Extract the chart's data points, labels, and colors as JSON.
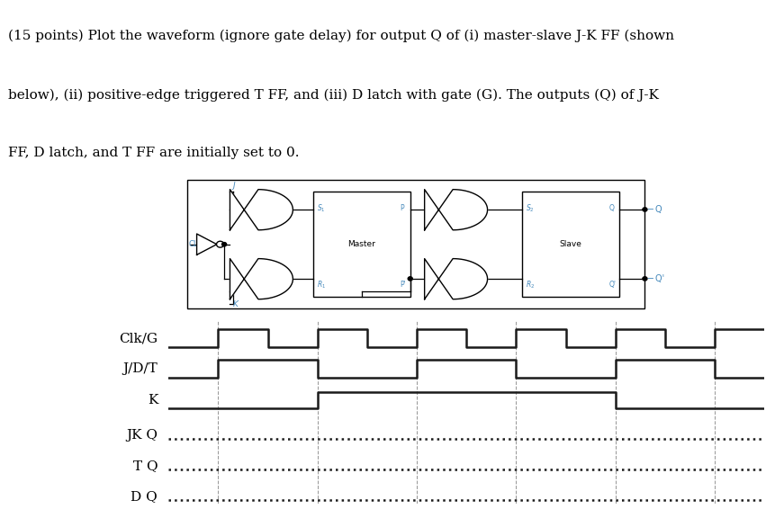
{
  "text_lines": [
    "(15 points) Plot the waveform (ignore gate delay) for output Q of (i) master-slave J-K FF (shown",
    "below), (ii) positive-edge triggered T FF, and (iii) D latch with gate (G). The outputs (Q) of J-K",
    "FF, D latch, and T FF are initially set to 0."
  ],
  "signals": {
    "Clk/G": {
      "times": [
        0,
        1,
        1,
        2,
        2,
        3,
        3,
        4,
        4,
        5,
        5,
        6,
        6,
        7,
        7,
        8,
        8,
        9,
        9,
        10,
        10,
        11,
        11,
        12
      ],
      "values": [
        0,
        0,
        1,
        1,
        0,
        0,
        1,
        1,
        0,
        0,
        1,
        1,
        0,
        0,
        1,
        1,
        0,
        0,
        1,
        1,
        0,
        0,
        1,
        1
      ]
    },
    "J/D/T": {
      "times": [
        0,
        1,
        1,
        3,
        3,
        5,
        5,
        7,
        7,
        9,
        9,
        11,
        11,
        12
      ],
      "values": [
        0,
        0,
        1,
        1,
        0,
        0,
        1,
        1,
        0,
        0,
        1,
        1,
        0,
        0
      ]
    },
    "K": {
      "times": [
        0,
        3,
        3,
        9,
        9,
        12
      ],
      "values": [
        0,
        0,
        1,
        1,
        0,
        0
      ]
    },
    "JK Q": {
      "times": [
        0,
        12
      ],
      "values": [
        0,
        0
      ],
      "dotted": true
    },
    "T Q": {
      "times": [
        0,
        12
      ],
      "values": [
        0,
        0
      ],
      "dotted": true
    },
    "D Q": {
      "times": [
        0,
        12
      ],
      "values": [
        0,
        0
      ],
      "dotted": true
    }
  },
  "signal_order": [
    "Clk/G",
    "J/D/T",
    "K",
    "JK Q",
    "T Q",
    "D Q"
  ],
  "x_max": 12,
  "vline_positions": [
    1,
    3,
    5,
    7,
    9,
    11
  ],
  "background_color": "#ffffff",
  "line_color": "#1a1a1a",
  "vline_color": "#888888",
  "label_color": "#000000",
  "waveform_lw": 1.8,
  "circuit_blue": "#4488bb",
  "text_fontsize": 11.0,
  "label_fontsize": 11.0
}
